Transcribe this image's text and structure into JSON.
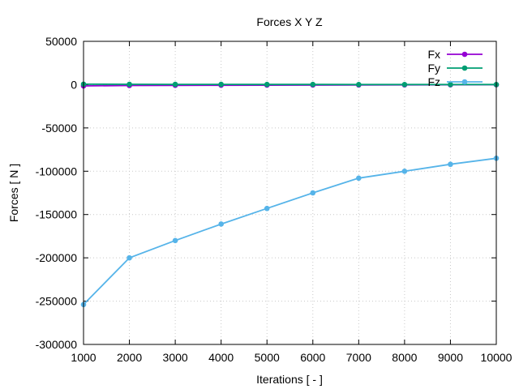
{
  "chart_data": {
    "type": "line",
    "title": "Forces X Y Z",
    "xlabel": "Iterations [ - ]",
    "ylabel": "Forces [ N ]",
    "xlim": [
      1000,
      10000
    ],
    "ylim": [
      -300000,
      50000
    ],
    "xticks": [
      1000,
      2000,
      3000,
      4000,
      5000,
      6000,
      7000,
      8000,
      9000,
      10000
    ],
    "yticks": [
      -300000,
      -250000,
      -200000,
      -150000,
      -100000,
      -50000,
      0,
      50000
    ],
    "grid": true,
    "legend_position": "top-right",
    "x": [
      1000,
      2000,
      3000,
      4000,
      5000,
      6000,
      7000,
      8000,
      9000,
      10000
    ],
    "series": [
      {
        "name": "Fx",
        "color": "#9400d3",
        "values": [
          -1500,
          -1000,
          -800,
          -700,
          -600,
          -500,
          -400,
          -300,
          -200,
          -100
        ]
      },
      {
        "name": "Fy",
        "color": "#009e73",
        "values": [
          500,
          400,
          300,
          300,
          200,
          200,
          100,
          100,
          100,
          100
        ]
      },
      {
        "name": "Fz",
        "color": "#56b4e9",
        "values": [
          -254000,
          -200000,
          -180000,
          -161000,
          -143000,
          -125000,
          -108000,
          -100000,
          -92000,
          -85000
        ]
      }
    ]
  }
}
